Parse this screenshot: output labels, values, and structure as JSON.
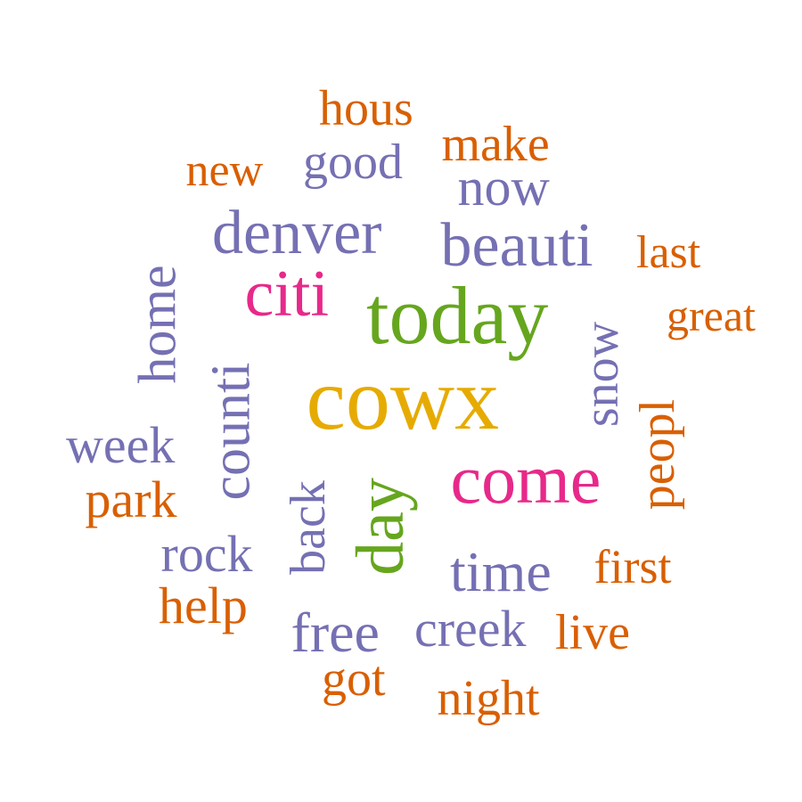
{
  "palette": {
    "orange": "#d95f02",
    "purple": "#7570b3",
    "pink": "#e7298a",
    "green": "#66a61e",
    "gold": "#e6ab02"
  },
  "words": [
    {
      "id": "hous",
      "text": "hous",
      "color": "orange"
    },
    {
      "id": "make",
      "text": "make",
      "color": "orange"
    },
    {
      "id": "good",
      "text": "good",
      "color": "purple"
    },
    {
      "id": "new",
      "text": "new",
      "color": "orange"
    },
    {
      "id": "now",
      "text": "now",
      "color": "purple"
    },
    {
      "id": "denver",
      "text": "denver",
      "color": "purple"
    },
    {
      "id": "beauti",
      "text": "beauti",
      "color": "purple"
    },
    {
      "id": "last",
      "text": "last",
      "color": "orange"
    },
    {
      "id": "citi",
      "text": "citi",
      "color": "pink"
    },
    {
      "id": "today",
      "text": "today",
      "color": "green"
    },
    {
      "id": "great",
      "text": "great",
      "color": "orange"
    },
    {
      "id": "home",
      "text": "home",
      "color": "purple"
    },
    {
      "id": "counti",
      "text": "counti",
      "color": "purple"
    },
    {
      "id": "cowx",
      "text": "cowx",
      "color": "gold"
    },
    {
      "id": "snow",
      "text": "snow",
      "color": "purple"
    },
    {
      "id": "peopl",
      "text": "peopl",
      "color": "orange"
    },
    {
      "id": "week",
      "text": "week",
      "color": "purple"
    },
    {
      "id": "back",
      "text": "back",
      "color": "purple"
    },
    {
      "id": "day",
      "text": "day",
      "color": "green"
    },
    {
      "id": "come",
      "text": "come",
      "color": "pink"
    },
    {
      "id": "park",
      "text": "park",
      "color": "orange"
    },
    {
      "id": "rock",
      "text": "rock",
      "color": "purple"
    },
    {
      "id": "time",
      "text": "time",
      "color": "purple"
    },
    {
      "id": "first",
      "text": "first",
      "color": "orange"
    },
    {
      "id": "help",
      "text": "help",
      "color": "orange"
    },
    {
      "id": "free",
      "text": "free",
      "color": "purple"
    },
    {
      "id": "creek",
      "text": "creek",
      "color": "purple"
    },
    {
      "id": "live",
      "text": "live",
      "color": "orange"
    },
    {
      "id": "got",
      "text": "got",
      "color": "orange"
    },
    {
      "id": "night",
      "text": "night",
      "color": "orange"
    }
  ]
}
